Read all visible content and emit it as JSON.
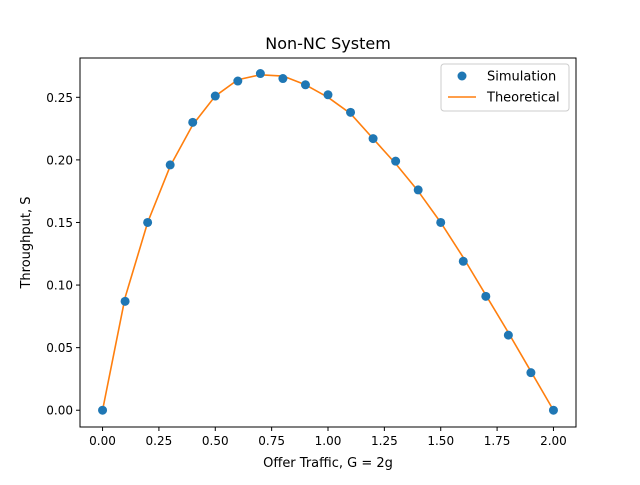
{
  "chart_data": {
    "type": "line",
    "title": "Non-NC System",
    "xlabel": "Offer Traffic, G = 2g",
    "ylabel": "Throughput, S",
    "xlim": [
      -0.1,
      2.1
    ],
    "ylim": [
      -0.0134,
      0.2814
    ],
    "grid": false,
    "legend_position": "top-right",
    "x_ticks": [
      "0.00",
      "0.25",
      "0.50",
      "0.75",
      "1.00",
      "1.25",
      "1.50",
      "1.75",
      "2.00"
    ],
    "y_ticks": [
      "0.00",
      "0.05",
      "0.10",
      "0.15",
      "0.20",
      "0.25"
    ],
    "x": [
      0.0,
      0.1,
      0.2,
      0.3,
      0.4,
      0.5,
      0.6,
      0.7,
      0.8,
      0.9,
      1.0,
      1.1,
      1.2,
      1.3,
      1.4,
      1.5,
      1.6,
      1.7,
      1.8,
      1.9,
      2.0
    ],
    "series": [
      {
        "name": "Simulation",
        "kind": "scatter",
        "color": "#1f77b4",
        "values": [
          0.0,
          0.087,
          0.15,
          0.196,
          0.23,
          0.251,
          0.263,
          0.269,
          0.265,
          0.26,
          0.252,
          0.238,
          0.217,
          0.199,
          0.176,
          0.15,
          0.119,
          0.091,
          0.06,
          0.03,
          0.0
        ]
      },
      {
        "name": "Theoretical",
        "kind": "line",
        "color": "#ff7f0e",
        "values": [
          0.0,
          0.09,
          0.15,
          0.195,
          0.228,
          0.251,
          0.264,
          0.268,
          0.267,
          0.26,
          0.25,
          0.237,
          0.217,
          0.197,
          0.175,
          0.15,
          0.122,
          0.092,
          0.062,
          0.031,
          0.0
        ]
      }
    ]
  }
}
